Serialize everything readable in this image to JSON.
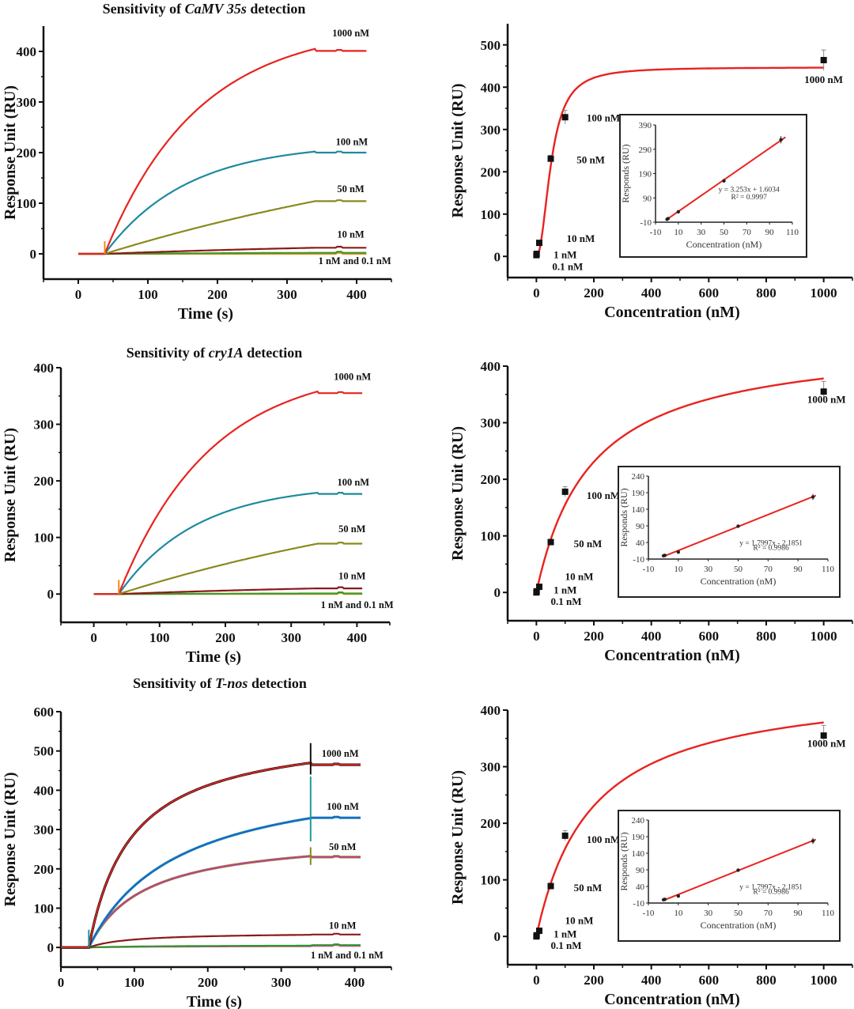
{
  "chart_data": [
    {
      "id": "camv-kinetics",
      "type": "line",
      "title_prefix": "Sensitivity of ",
      "title_italic": "CaMV 35s",
      "title_suffix": " detection",
      "xlabel": "Time (s)",
      "ylabel": "Response Unit (RU)",
      "xlim": [
        -50,
        450
      ],
      "ylim": [
        -50,
        450
      ],
      "xticks": [
        0,
        100,
        200,
        300,
        400
      ],
      "yticks": [
        0,
        100,
        200,
        300,
        400
      ],
      "injection_start": 38,
      "injection_end": 340,
      "x_end": 415,
      "model": "exponential",
      "series": [
        {
          "name": "1000 nM",
          "color": "#e8231f",
          "plateau": 405,
          "k": 0.0075,
          "final": 401
        },
        {
          "name": "100 nM",
          "color": "#1e8aa0",
          "plateau": 202,
          "k": 0.0085,
          "final": 200
        },
        {
          "name": "50 nM",
          "color": "#8a8a1e",
          "plateau": 104,
          "k": 0.0015,
          "final": 104
        },
        {
          "name": "10 nM",
          "color": "#8b1a1a",
          "plateau": 12,
          "k": 0.002,
          "final": 12
        },
        {
          "name": "1 nM",
          "color": "#3a9a2a",
          "plateau": 2,
          "k": 0.003,
          "final": 2
        },
        {
          "name": "0.1 nM",
          "color": "#f28a1a",
          "plateau": 0,
          "k": 0.003,
          "final": 0
        }
      ],
      "annotations": [
        {
          "text": "1000 nM",
          "x": 365,
          "y": 430
        },
        {
          "text": "100 nM",
          "x": 370,
          "y": 215
        },
        {
          "text": "50 nM",
          "x": 372,
          "y": 122
        },
        {
          "text": "10 nM",
          "x": 372,
          "y": 32
        },
        {
          "text": "1 nM and  0.1 nM",
          "x": 345,
          "y": -20
        }
      ]
    },
    {
      "id": "camv-concentration",
      "type": "scatter",
      "xlabel": "Concentration (nM)",
      "ylabel": "Response Unit (RU)",
      "xlim": [
        -100,
        1100
      ],
      "ylim": [
        -50,
        550
      ],
      "xticks": [
        0,
        200,
        400,
        600,
        800,
        1000
      ],
      "yticks": [
        0,
        100,
        200,
        300,
        400,
        500
      ],
      "points": [
        {
          "x": 0.1,
          "y": 3,
          "err": 4
        },
        {
          "x": 1,
          "y": 6,
          "err": 4
        },
        {
          "x": 10,
          "y": 32,
          "err": 4
        },
        {
          "x": 50,
          "y": 231,
          "err": 8
        },
        {
          "x": 100,
          "y": 329,
          "err": 16
        },
        {
          "x": 1000,
          "y": 464,
          "err": 24
        }
      ],
      "fit": {
        "model": "hill",
        "ymax": 447,
        "kd": 52,
        "n": 2.1,
        "color": "#e8231f"
      },
      "annotations": [
        {
          "text": "1000 nM",
          "x": 1000,
          "y": 410
        },
        {
          "text": "100 nM",
          "x": 175,
          "y": 319
        },
        {
          "text": "50 nM",
          "x": 140,
          "y": 220
        },
        {
          "text": "10 nM",
          "x": 105,
          "y": 34
        },
        {
          "text": "1 nM",
          "x": 60,
          "y": -4
        },
        {
          "text": "0.1 nM",
          "x": 55,
          "y": -32
        }
      ],
      "inset": {
        "xlabel": "Concentration  (nM)",
        "ylabel": "Responds (RU)",
        "xlim": [
          -10,
          110
        ],
        "ylim": [
          -10,
          390
        ],
        "xticks": [
          -10,
          10,
          30,
          50,
          70,
          90,
          110
        ],
        "yticks": [
          -10,
          90,
          190,
          290,
          390
        ],
        "points": [
          {
            "x": 0.1,
            "y": 2,
            "err": 3
          },
          {
            "x": 1,
            "y": 5,
            "err": 3
          },
          {
            "x": 10,
            "y": 33,
            "err": 3
          },
          {
            "x": 50,
            "y": 160,
            "err": 8
          },
          {
            "x": 100,
            "y": 329,
            "err": 15
          }
        ],
        "fit": {
          "slope": 3.253,
          "intercept": 1.6034,
          "x_range": [
            0,
            102
          ]
        },
        "equation": "y = 3.253x + 1.6034",
        "r2": "R² = 0.9997"
      }
    },
    {
      "id": "cry1a-kinetics",
      "type": "line",
      "title_prefix": "Sensitivity of ",
      "title_italic": "cry1A",
      "title_suffix": " detection",
      "xlabel": "Time (s)",
      "ylabel": "Response Unit (RU)",
      "xlim": [
        -50,
        450
      ],
      "ylim": [
        -50,
        400
      ],
      "xticks": [
        0,
        100,
        200,
        300,
        400
      ],
      "yticks": [
        0,
        100,
        200,
        300,
        400
      ],
      "injection_start": 38,
      "injection_end": 340,
      "x_end": 408,
      "model": "exponential",
      "series": [
        {
          "name": "1000 nM",
          "color": "#e8231f",
          "plateau": 358,
          "k": 0.0072,
          "final": 355
        },
        {
          "name": "100 nM",
          "color": "#1e8aa0",
          "plateau": 179,
          "k": 0.0085,
          "final": 177
        },
        {
          "name": "50 nM",
          "color": "#8a8a1e",
          "plateau": 89,
          "k": 0.0016,
          "final": 89
        },
        {
          "name": "10 nM",
          "color": "#8b1a1a",
          "plateau": 10,
          "k": 0.002,
          "final": 10
        },
        {
          "name": "1 nM",
          "color": "#3a9a2a",
          "plateau": 1,
          "k": 0.003,
          "final": 1
        },
        {
          "name": "0.1 nM",
          "color": "#f28a1a",
          "plateau": 0,
          "k": 0.003,
          "final": 0
        }
      ],
      "annotations": [
        {
          "text": "1000 nM",
          "x": 365,
          "y": 378
        },
        {
          "text": "100 nM",
          "x": 370,
          "y": 192
        },
        {
          "text": "50 nM",
          "x": 372,
          "y": 109
        },
        {
          "text": "10 nM",
          "x": 372,
          "y": 26
        },
        {
          "text": "1 nM and  0.1 nM",
          "x": 345,
          "y": -25
        }
      ]
    },
    {
      "id": "cry1a-concentration",
      "type": "scatter",
      "xlabel": "Concentration (nM)",
      "ylabel": "Response Unit (RU)",
      "xlim": [
        -100,
        1100
      ],
      "ylim": [
        -50,
        400
      ],
      "xticks": [
        0,
        200,
        400,
        600,
        800,
        1000
      ],
      "yticks": [
        0,
        100,
        200,
        300,
        400
      ],
      "points": [
        {
          "x": 0.1,
          "y": 0,
          "err": 3
        },
        {
          "x": 1,
          "y": 2,
          "err": 3
        },
        {
          "x": 10,
          "y": 10,
          "err": 3
        },
        {
          "x": 50,
          "y": 89,
          "err": 4
        },
        {
          "x": 100,
          "y": 178,
          "err": 9
        },
        {
          "x": 1000,
          "y": 355,
          "err": 18
        }
      ],
      "fit": {
        "model": "hill",
        "ymax": 450,
        "kd": 190,
        "n": 1.0,
        "color": "#e8231f"
      },
      "annotations": [
        {
          "text": "1000 nM",
          "x": 1010,
          "y": 335
        },
        {
          "text": "100 nM",
          "x": 175,
          "y": 165
        },
        {
          "text": "50 nM",
          "x": 130,
          "y": 80
        },
        {
          "text": "10 nM",
          "x": 100,
          "y": 22
        },
        {
          "text": "1 nM",
          "x": 60,
          "y": -2
        },
        {
          "text": "0.1 nM",
          "x": 50,
          "y": -22
        }
      ],
      "inset": {
        "xlabel": "Concentration  (nM)",
        "ylabel": "Responds (RU)",
        "xlim": [
          -10,
          110
        ],
        "ylim": [
          -10,
          240
        ],
        "xticks": [
          -10,
          10,
          30,
          50,
          70,
          90,
          110
        ],
        "yticks": [
          -10,
          40,
          90,
          140,
          190,
          240
        ],
        "points": [
          {
            "x": 0.1,
            "y": 0,
            "err": 2
          },
          {
            "x": 1,
            "y": 1,
            "err": 2
          },
          {
            "x": 10,
            "y": 11,
            "err": 3
          },
          {
            "x": 50,
            "y": 89,
            "err": 5
          },
          {
            "x": 100,
            "y": 177,
            "err": 9
          }
        ],
        "fit": {
          "slope": 1.7997,
          "intercept": -2.1851,
          "x_range": [
            0,
            100
          ]
        },
        "equation": "y = 1.7997x - 2.1851",
        "r2": "R² = 0.9986"
      }
    },
    {
      "id": "tnos-kinetics",
      "type": "line",
      "title_prefix": "Sensitivity of ",
      "title_italic": "T-nos",
      "title_suffix": " detection",
      "xlabel": "Time (s)",
      "ylabel": "Response Unit (RU)",
      "xlim": [
        0,
        450
      ],
      "ylim": [
        -50,
        600
      ],
      "xticks": [
        0,
        100,
        200,
        300,
        400
      ],
      "yticks": [
        0,
        100,
        200,
        300,
        400,
        500,
        600
      ],
      "injection_start": 38,
      "injection_end": 340,
      "x_end": 408,
      "model": "hyperbolic",
      "series": [
        {
          "name": "1000 nM",
          "color": "#e8231f",
          "overlay": "#111111",
          "plateau": 560,
          "half": 58,
          "final": 465,
          "spike": [
            520,
            440
          ]
        },
        {
          "name": "100 nM",
          "color": "#1f5fd0",
          "overlay": "#1e9aa0",
          "plateau": 460,
          "half": 120,
          "final": 330,
          "spike": [
            435,
            270
          ]
        },
        {
          "name": "50 nM",
          "color": "#c43aa0",
          "overlay": "#8a8a1e",
          "plateau": 290,
          "half": 75,
          "final": 230,
          "spike": [
            255,
            210
          ]
        },
        {
          "name": "10 nM",
          "color": "#8b1a1a",
          "plateau": 38,
          "half": 55,
          "final": 33
        },
        {
          "name": "1 nM",
          "color": "#2a9a2a",
          "plateau": 6,
          "half": 100,
          "final": 6
        },
        {
          "name": "0.1 nM",
          "color": "#e83a9a",
          "plateau": 4,
          "half": 100,
          "final": 4
        }
      ],
      "annotations": [
        {
          "text": "1000 nM",
          "x": 355,
          "y": 485
        },
        {
          "text": "100 nM",
          "x": 362,
          "y": 350
        },
        {
          "text": "50 nM",
          "x": 365,
          "y": 248
        },
        {
          "text": "10 nM",
          "x": 365,
          "y": 48
        },
        {
          "text": "1 nM and  0.1 nM",
          "x": 340,
          "y": -28
        }
      ]
    },
    {
      "id": "tnos-concentration",
      "type": "scatter",
      "xlabel": "Concentration (nM)",
      "ylabel": "Response Unit (RU)",
      "xlim": [
        -100,
        1100
      ],
      "ylim": [
        -50,
        400
      ],
      "xticks": [
        0,
        200,
        400,
        600,
        800,
        1000
      ],
      "yticks": [
        0,
        100,
        200,
        300,
        400
      ],
      "points": [
        {
          "x": 0.1,
          "y": 0,
          "err": 3
        },
        {
          "x": 1,
          "y": 2,
          "err": 3
        },
        {
          "x": 10,
          "y": 10,
          "err": 3
        },
        {
          "x": 50,
          "y": 89,
          "err": 4
        },
        {
          "x": 100,
          "y": 178,
          "err": 9
        },
        {
          "x": 1000,
          "y": 355,
          "err": 18
        }
      ],
      "fit": {
        "model": "hill",
        "ymax": 450,
        "kd": 190,
        "n": 1.0,
        "color": "#e8231f"
      },
      "annotations": [
        {
          "text": "1000 nM",
          "x": 1010,
          "y": 335
        },
        {
          "text": "100 nM",
          "x": 175,
          "y": 165
        },
        {
          "text": "50 nM",
          "x": 130,
          "y": 80
        },
        {
          "text": "10 nM",
          "x": 100,
          "y": 22
        },
        {
          "text": "1 nM",
          "x": 60,
          "y": -2
        },
        {
          "text": "0.1 nM",
          "x": 50,
          "y": -22
        }
      ],
      "inset": {
        "xlabel": "Concentration  (nM)",
        "ylabel": "Responds (RU)",
        "xlim": [
          -10,
          110
        ],
        "ylim": [
          -10,
          240
        ],
        "xticks": [
          -10,
          10,
          30,
          50,
          70,
          90,
          110
        ],
        "yticks": [
          -10,
          40,
          90,
          140,
          190,
          240
        ],
        "points": [
          {
            "x": 0.1,
            "y": 0,
            "err": 2
          },
          {
            "x": 1,
            "y": 1,
            "err": 2
          },
          {
            "x": 10,
            "y": 11,
            "err": 3
          },
          {
            "x": 50,
            "y": 89,
            "err": 5
          },
          {
            "x": 100,
            "y": 177,
            "err": 9
          }
        ],
        "fit": {
          "slope": 1.7997,
          "intercept": -2.1851,
          "x_range": [
            0,
            100
          ]
        },
        "equation": "y = 1.7997x - 2.1851",
        "r2": "R² = 0.9986"
      }
    }
  ]
}
